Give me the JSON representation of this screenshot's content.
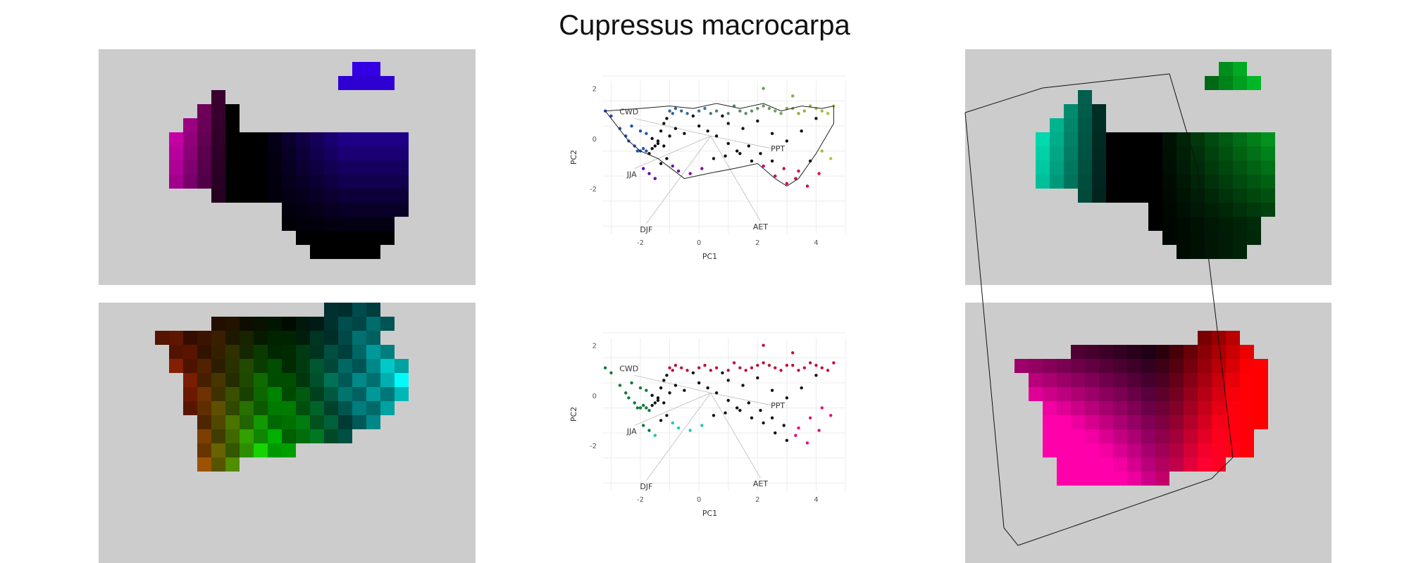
{
  "title": "Cupressus macrocarpa",
  "chart_data": [
    {
      "type": "scatter",
      "name": "pca-biplot-top",
      "x": [
        -3.2,
        -3.0,
        -2.7,
        -2.5,
        -2.4,
        -2.2,
        -2.1,
        -2.0,
        -1.9,
        -1.8,
        -1.7,
        -1.6,
        -1.5,
        -1.4,
        -1.3,
        -1.2,
        -1.1,
        -1.0,
        -0.9,
        -0.8,
        -0.6,
        -0.4,
        -0.2,
        0.0,
        0.2,
        0.4,
        0.6,
        0.8,
        1.0,
        1.2,
        1.4,
        1.6,
        1.8,
        2.0,
        2.2,
        2.4,
        2.6,
        2.8,
        3.0,
        3.2,
        3.4,
        3.6,
        3.8,
        4.0,
        4.2,
        4.4,
        4.6,
        -2.3,
        -2.0,
        -1.8,
        -1.6,
        -1.4,
        -1.2,
        -1.0,
        -0.8,
        -0.5,
        0.0,
        0.3,
        0.6,
        1.0,
        1.4,
        1.8,
        2.2,
        2.6,
        3.0,
        3.4,
        3.8,
        4.2,
        -1.9,
        -1.7,
        -1.5,
        -1.3,
        -1.1,
        -0.9,
        -0.7,
        -0.3,
        0.1,
        0.5,
        0.9,
        1.3,
        1.7,
        2.1,
        2.5,
        2.9,
        3.3,
        3.7,
        4.1,
        4.5,
        2.2,
        3.2,
        1.0,
        1.5,
        2.0,
        2.5,
        3.0,
        3.5,
        4.0
      ],
      "y": [
        1.1,
        0.9,
        0.4,
        0.1,
        -0.1,
        -0.3,
        -0.5,
        -0.5,
        -0.4,
        -0.5,
        -0.6,
        -0.4,
        -0.3,
        -0.1,
        0.3,
        0.6,
        0.8,
        1.1,
        1.0,
        1.2,
        1.1,
        1.0,
        0.9,
        1.1,
        1.2,
        1.0,
        1.1,
        0.9,
        1.0,
        1.3,
        1.1,
        1.0,
        1.1,
        1.2,
        1.3,
        1.2,
        1.1,
        1.0,
        1.2,
        1.2,
        1.0,
        1.1,
        1.3,
        1.2,
        1.1,
        1.0,
        1.3,
        0.5,
        0.3,
        0.2,
        0.0,
        -0.2,
        -0.3,
        0.1,
        0.4,
        0.2,
        0.5,
        0.3,
        0.1,
        -0.2,
        -0.6,
        -0.9,
        -1.1,
        -1.5,
        -1.8,
        -1.3,
        -0.9,
        -0.5,
        -1.2,
        -1.4,
        -1.6,
        -1.0,
        -0.8,
        -1.1,
        -1.3,
        -1.4,
        -1.2,
        -0.8,
        -0.7,
        -0.5,
        -0.3,
        -0.6,
        -0.9,
        -1.2,
        -1.6,
        -1.9,
        -1.4,
        -0.8,
        2.0,
        1.7,
        0.6,
        0.4,
        0.7,
        0.2,
        -0.1,
        0.3,
        0.8
      ],
      "vectors": [
        {
          "label": "CWD",
          "x": -2.2,
          "y": 0.8
        },
        {
          "label": "JJA",
          "x": -2.2,
          "y": -1.2
        },
        {
          "label": "DJF",
          "x": -1.8,
          "y": -3.4
        },
        {
          "label": "AET",
          "x": 2.1,
          "y": -3.3
        },
        {
          "label": "PPT",
          "x": 2.5,
          "y": -0.4
        }
      ],
      "xlabel": "PC1",
      "ylabel": "PC2",
      "xticks": [
        -2,
        0,
        2,
        4
      ],
      "yticks": [
        2,
        0,
        -2
      ],
      "xlim": [
        -3.3,
        5.0
      ],
      "ylim": [
        -3.8,
        2.3
      ],
      "grid": true
    },
    {
      "type": "scatter",
      "name": "pca-biplot-bottom",
      "x": [
        -3.2,
        -3.0,
        -2.7,
        -2.5,
        -2.4,
        -2.2,
        -2.1,
        -2.0,
        -1.9,
        -1.8,
        -1.7,
        -1.6,
        -1.5,
        -1.4,
        -1.3,
        -1.2,
        -1.1,
        -1.0,
        -0.9,
        -0.8,
        -0.6,
        -0.4,
        -0.2,
        0.0,
        0.2,
        0.4,
        0.6,
        0.8,
        1.0,
        1.2,
        1.4,
        1.6,
        1.8,
        2.0,
        2.2,
        2.4,
        2.6,
        2.8,
        3.0,
        3.2,
        3.4,
        3.6,
        3.8,
        4.0,
        4.2,
        4.4,
        4.6,
        -2.3,
        -2.0,
        -1.8,
        -1.6,
        -1.4,
        -1.2,
        -1.0,
        -0.8,
        -0.5,
        0.0,
        0.3,
        0.6,
        1.0,
        1.4,
        1.8,
        2.2,
        2.6,
        3.0,
        3.4,
        3.8,
        4.2,
        -1.9,
        -1.7,
        -1.5,
        -1.3,
        -1.1,
        -0.9,
        -0.7,
        -0.3,
        0.1,
        0.5,
        0.9,
        1.3,
        1.7,
        2.1,
        2.5,
        2.9,
        3.3,
        3.7,
        4.1,
        4.5,
        2.2,
        3.2,
        1.0,
        1.5,
        2.0,
        2.5,
        3.0,
        3.5,
        4.0
      ],
      "y": [
        1.1,
        0.9,
        0.4,
        0.1,
        -0.1,
        -0.3,
        -0.5,
        -0.5,
        -0.4,
        -0.5,
        -0.6,
        -0.4,
        -0.3,
        -0.1,
        0.3,
        0.6,
        0.8,
        1.1,
        1.0,
        1.2,
        1.1,
        1.0,
        0.9,
        1.1,
        1.2,
        1.0,
        1.1,
        0.9,
        1.0,
        1.3,
        1.1,
        1.0,
        1.1,
        1.2,
        1.3,
        1.2,
        1.1,
        1.0,
        1.2,
        1.2,
        1.0,
        1.1,
        1.3,
        1.2,
        1.1,
        1.0,
        1.3,
        0.5,
        0.3,
        0.2,
        0.0,
        -0.2,
        -0.3,
        0.1,
        0.4,
        0.2,
        0.5,
        0.3,
        0.1,
        -0.2,
        -0.6,
        -0.9,
        -1.1,
        -1.5,
        -1.8,
        -1.3,
        -0.9,
        -0.5,
        -1.2,
        -1.4,
        -1.6,
        -1.0,
        -0.8,
        -1.1,
        -1.3,
        -1.4,
        -1.2,
        -0.8,
        -0.7,
        -0.5,
        -0.3,
        -0.6,
        -0.9,
        -1.2,
        -1.6,
        -1.9,
        -1.4,
        -0.8,
        2.0,
        1.7,
        0.6,
        0.4,
        0.7,
        0.2,
        -0.1,
        0.3,
        0.8
      ],
      "vectors": [
        {
          "label": "CWD",
          "x": -2.2,
          "y": 0.8
        },
        {
          "label": "JJA",
          "x": -2.2,
          "y": -1.2
        },
        {
          "label": "DJF",
          "x": -1.8,
          "y": -3.4
        },
        {
          "label": "AET",
          "x": 2.1,
          "y": -3.3
        },
        {
          "label": "PPT",
          "x": 2.5,
          "y": -0.4
        }
      ],
      "xlabel": "PC1",
      "ylabel": "PC2",
      "xticks": [
        -2,
        0,
        2,
        4
      ],
      "yticks": [
        2,
        0,
        -2
      ],
      "xlim": [
        -3.3,
        5.0
      ],
      "ylim": [
        -3.8,
        2.3
      ],
      "grid": true
    },
    {
      "type": "heatmap",
      "name": "raster-maps",
      "description_colors": {
        "background": "#cccccc"
      },
      "maps": [
        {
          "name": "top-left",
          "palette": [
            "#ff00cc",
            "#000000",
            "#3300ff"
          ]
        },
        {
          "name": "bottom-left",
          "palette": [
            "#ff0000",
            "#00ff00",
            "#00ffff",
            "#000000"
          ]
        },
        {
          "name": "top-right",
          "palette": [
            "#00ffcc",
            "#000000",
            "#00ff33"
          ]
        },
        {
          "name": "bottom-right",
          "palette": [
            "#ff00aa",
            "#000000",
            "#ff0000"
          ]
        }
      ]
    }
  ]
}
